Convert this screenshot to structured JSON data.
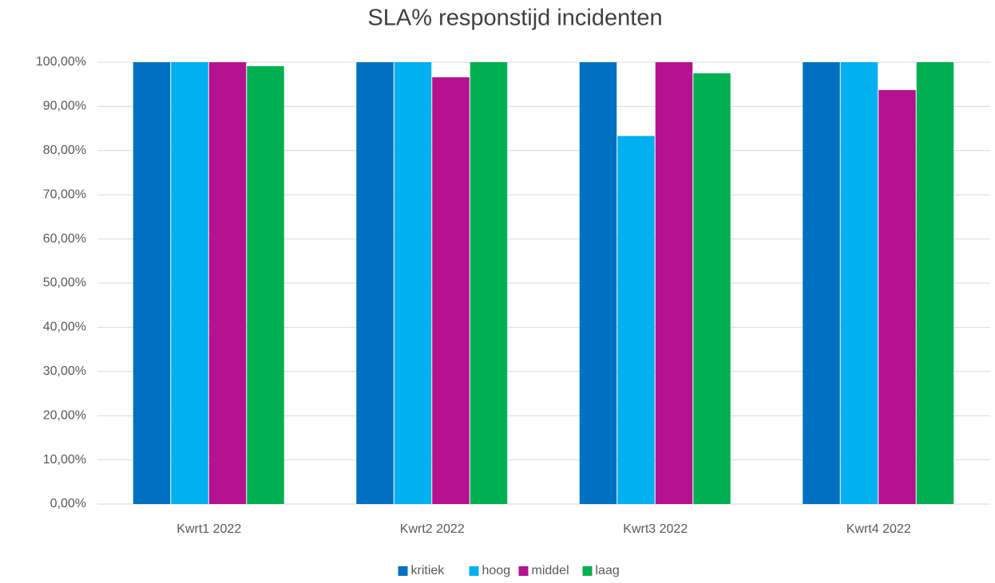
{
  "chart_data": {
    "type": "bar",
    "title": "SLA% responstijd incidenten",
    "categories": [
      "Kwrt1 2022",
      "Kwrt2 2022",
      "Kwrt3 2022",
      "Kwrt4 2022"
    ],
    "series": [
      {
        "name": "kritiek",
        "color": "#0070c0",
        "values": [
          100,
          100,
          100,
          100
        ]
      },
      {
        "name": "hoog",
        "color": "#00b0f0",
        "values": [
          100,
          100,
          83.3,
          100
        ]
      },
      {
        "name": "middel",
        "color": "#b4128f",
        "values": [
          100,
          96.6,
          100,
          93.7
        ]
      },
      {
        "name": "laag",
        "color": "#00b050",
        "values": [
          99.1,
          100,
          97.5,
          100
        ]
      }
    ],
    "ylim": [
      0,
      100
    ],
    "yticks": [
      {
        "value": 0,
        "label": "0,00%"
      },
      {
        "value": 10,
        "label": "10,00%"
      },
      {
        "value": 20,
        "label": "20,00%"
      },
      {
        "value": 30,
        "label": "30,00%"
      },
      {
        "value": 40,
        "label": "40,00%"
      },
      {
        "value": 50,
        "label": "50,00%"
      },
      {
        "value": 60,
        "label": "60,00%"
      },
      {
        "value": 70,
        "label": "70,00%"
      },
      {
        "value": 80,
        "label": "80,00%"
      },
      {
        "value": 90,
        "label": "90,00%"
      },
      {
        "value": 100,
        "label": "100,00%"
      }
    ],
    "grid": true,
    "legend": "bottom"
  }
}
